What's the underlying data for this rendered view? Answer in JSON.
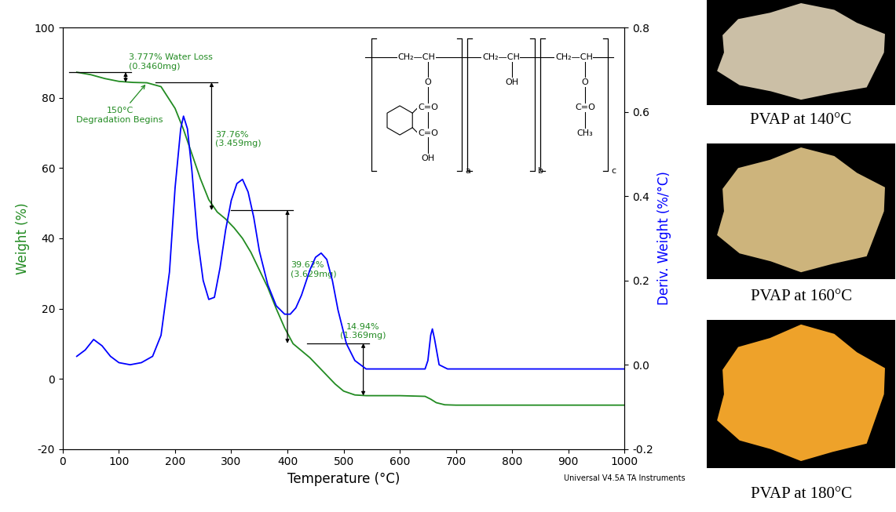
{
  "chart_data": {
    "type": "line",
    "xlabel": "Temperature (°C)",
    "ylabel": "Weight (%)",
    "y2label": "Deriv. Weight (%/°C)",
    "xlim": [
      0,
      1000
    ],
    "xticks": [
      0,
      100,
      200,
      300,
      400,
      500,
      600,
      700,
      800,
      900,
      1000
    ],
    "ylim": [
      -20,
      100
    ],
    "yticks": [
      -20,
      0,
      20,
      40,
      60,
      80,
      100
    ],
    "y2lim": [
      -0.2,
      0.8
    ],
    "y2ticks": [
      -0.2,
      {
        "value": 0,
        "label": "0.0"
      },
      0.2,
      0.4,
      0.6,
      0.8
    ],
    "grid": false,
    "series": [
      {
        "color": "#228b22",
        "axis": "y",
        "x": [
          25,
          50,
          75,
          100,
          125,
          150,
          175,
          200,
          215,
          230,
          245,
          260,
          275,
          290,
          305,
          320,
          335,
          350,
          365,
          380,
          395,
          410,
          425,
          440,
          455,
          470,
          485,
          500,
          520,
          540,
          600,
          645,
          655,
          665,
          680,
          700,
          800,
          1000
        ],
        "values": [
          87.3,
          86.6,
          85.5,
          84.7,
          84.4,
          84.3,
          83.2,
          77,
          71,
          64,
          57,
          51,
          47.5,
          45.5,
          43,
          40,
          36,
          31,
          26,
          20,
          14.5,
          10,
          8,
          6,
          3.5,
          1,
          -1.5,
          -3.5,
          -4.6,
          -4.8,
          -4.8,
          -5,
          -5.8,
          -6.8,
          -7.4,
          -7.5,
          -7.5,
          -7.5
        ]
      },
      {
        "color": "#0000ff",
        "axis": "y2",
        "x": [
          25,
          40,
          55,
          70,
          85,
          100,
          120,
          140,
          160,
          175,
          190,
          200,
          210,
          215,
          222,
          230,
          240,
          250,
          260,
          270,
          280,
          290,
          300,
          310,
          320,
          330,
          340,
          350,
          365,
          380,
          395,
          405,
          415,
          425,
          440,
          450,
          460,
          470,
          480,
          490,
          505,
          520,
          540,
          600,
          645,
          650,
          655,
          658,
          662,
          670,
          685,
          700,
          800,
          1000
        ],
        "values": [
          0.02,
          0.035,
          0.06,
          0.045,
          0.02,
          0.005,
          0.0,
          0.005,
          0.02,
          0.07,
          0.22,
          0.42,
          0.56,
          0.59,
          0.56,
          0.46,
          0.3,
          0.2,
          0.155,
          0.16,
          0.23,
          0.32,
          0.39,
          0.43,
          0.44,
          0.41,
          0.35,
          0.27,
          0.19,
          0.14,
          0.12,
          0.12,
          0.135,
          0.165,
          0.225,
          0.255,
          0.265,
          0.25,
          0.2,
          0.13,
          0.05,
          0.01,
          -0.01,
          -0.01,
          -0.01,
          0.01,
          0.07,
          0.085,
          0.06,
          0.0,
          -0.01,
          -0.01,
          -0.01,
          -0.01
        ]
      }
    ],
    "steps": [
      {
        "label": "3.777% Water Loss\n(0.3460mg)",
        "x": 112,
        "y_top": 87.3,
        "y_bottom": 84.4
      },
      {
        "label": "37.76%\n(3.459mg)",
        "x": 265,
        "y_top": 84.4,
        "y_bottom": 48
      },
      {
        "label": "39.62%\n(3.629mg)",
        "x": 400,
        "y_top": 48,
        "y_bottom": 10.1
      },
      {
        "label": "14.94%\n(1.369mg)",
        "x": 535,
        "y_top": 10.1,
        "y_bottom": -4.8
      }
    ],
    "annotations": [
      {
        "text": "150°C\nDegradation Begins",
        "x": 150,
        "y": 84.3
      }
    ],
    "structure": {
      "units": [
        {
          "backbone": "CH₂—CH",
          "pendant": [
            "O",
            "C=O",
            "C=O",
            "OH"
          ],
          "subscript": "a"
        },
        {
          "backbone": "CH₂—CH",
          "pendant": [
            "OH"
          ],
          "subscript": "b"
        },
        {
          "backbone": "CH₂—CH",
          "pendant": [
            "O",
            "C=O",
            "CH₃"
          ],
          "subscript": "c"
        }
      ]
    },
    "footer": "Universal V4.5A TA Instruments"
  },
  "photos": [
    {
      "caption": "PVAP at 140°C",
      "color": "#cbbfa6"
    },
    {
      "caption": "PVAP at 160°C",
      "color": "#cdb47c"
    },
    {
      "caption": "PVAP at 180°C",
      "color": "#eea22a"
    }
  ]
}
